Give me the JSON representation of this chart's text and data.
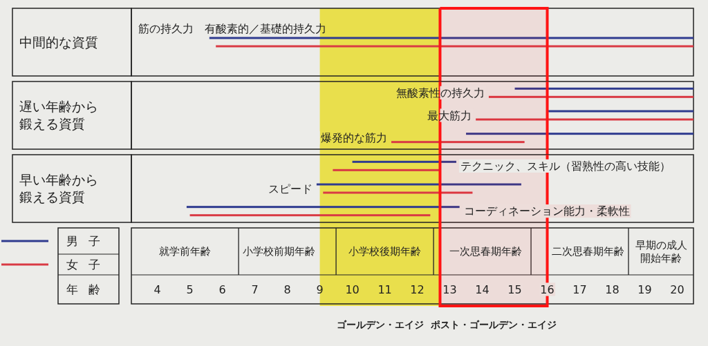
{
  "chart_data": [
    {
      "type": "bar",
      "orientation": "horizontal",
      "title": "中間的な資質",
      "categories": [
        "筋の持久力　有酸素的／基礎的持久力"
      ],
      "series": [
        {
          "color": "#2f3b8f",
          "base": [
            5.6
          ],
          "values": [
            14.9
          ]
        },
        {
          "color": "#d93a44",
          "base": [
            5.8
          ],
          "values": [
            14.7
          ]
        }
      ],
      "xlim": [
        3.2,
        20.5
      ],
      "tick_labels": "y",
      "bands": [
        {
          "axis": "x",
          "from": 9,
          "to": 12.7,
          "color": "#e9df4c"
        },
        {
          "axis": "x",
          "from": 12.7,
          "to": 16,
          "color": "#ff1414"
        }
      ]
    },
    {
      "type": "bar",
      "orientation": "horizontal",
      "title": "遅い年齢から鍛える資質",
      "categories": [
        "無酸素性の持久力",
        "最大筋力",
        "爆発的な筋力"
      ],
      "series": [
        {
          "color": "#2f3b8f",
          "base": [
            15,
            16,
            13.5
          ],
          "values": [
            5.5,
            4.5,
            7
          ]
        },
        {
          "color": "#d93a44",
          "base": [
            14.2,
            13.8,
            11.2
          ],
          "values": [
            6.3,
            6.7,
            4.1
          ]
        }
      ],
      "xlim": [
        3.2,
        20.5
      ],
      "tick_labels": "y",
      "bands": [
        {
          "axis": "x",
          "from": 9,
          "to": 12.7,
          "color": "#e9df4c"
        },
        {
          "axis": "x",
          "from": 12.7,
          "to": 16,
          "color": "#ff1414"
        }
      ]
    },
    {
      "type": "bar",
      "orientation": "horizontal",
      "title": "早い年齢から鍛える資質",
      "categories": [
        "テクニック、スキル（習熟性の高い技能）",
        "スピード",
        "コーディネーション能力・柔軟性"
      ],
      "series": [
        {
          "name": "男子",
          "color": "#2f3b8f",
          "base": [
            10,
            8.9,
            4.9
          ],
          "values": [
            3.2,
            6.3,
            8.4
          ]
        },
        {
          "name": "女子",
          "color": "#d93a44",
          "base": [
            9.4,
            9.1,
            5
          ],
          "values": [
            3.3,
            4.6,
            7.4
          ]
        }
      ],
      "xlim": [
        3.2,
        20.5
      ],
      "xticks": [
        4,
        5,
        6,
        7,
        8,
        9,
        10,
        11,
        12,
        13,
        14,
        15,
        16,
        17,
        18,
        19,
        20
      ],
      "xlabel": "年齢",
      "legend": "bottom left",
      "annotations": [
        "就学前年齢",
        "小学校前期年齢",
        "小学校後期年齢",
        "一次思春期年齢",
        "二次思春期年齢",
        "早期の成人開始年齢"
      ],
      "bands": [
        {
          "axis": "x",
          "from": 9,
          "to": 12.7,
          "color": "#e9df4c",
          "label": "ゴールデン・エイジ"
        },
        {
          "axis": "x",
          "from": 12.7,
          "to": 16,
          "color": "#ff1414",
          "label": "ポスト・ゴールデン・エイジ"
        }
      ]
    }
  ]
}
